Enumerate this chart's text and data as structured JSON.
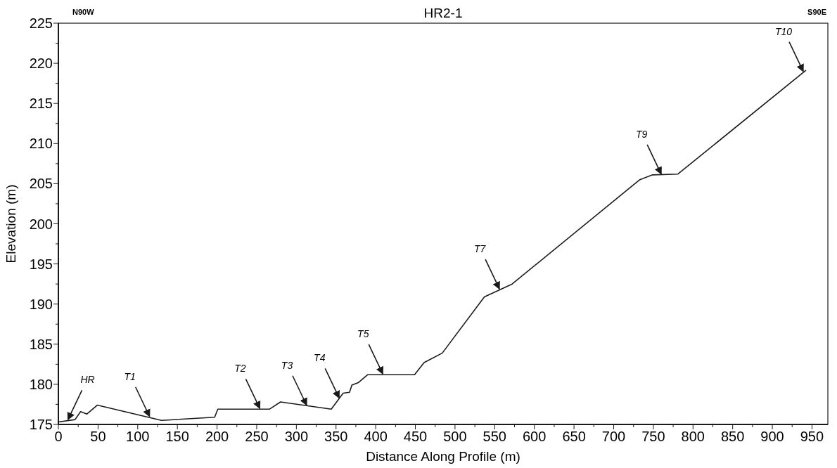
{
  "chart_data": {
    "type": "line",
    "title": "HR2-1",
    "xlabel": "Distance Along Profile (m)",
    "ylabel": "Elevation (m)",
    "x": [
      0,
      21,
      28,
      36,
      49,
      130,
      197,
      201,
      266,
      280,
      344,
      359,
      367,
      370,
      378,
      390,
      449,
      461,
      484,
      537,
      572,
      733,
      749,
      781,
      942
    ],
    "series": [
      {
        "color": "#1a1a1a",
        "values": [
          175.3,
          175.6,
          176.6,
          176.3,
          177.4,
          175.5,
          175.9,
          176.9,
          176.9,
          177.8,
          176.9,
          178.9,
          179.0,
          179.9,
          180.2,
          181.2,
          181.2,
          182.7,
          183.9,
          190.9,
          192.5,
          205.5,
          206.1,
          206.2,
          219.1
        ]
      }
    ],
    "xlim": [
      0,
      970
    ],
    "ylim": [
      175,
      225
    ],
    "xticks": [
      0,
      {
        "value": 25,
        "label": null
      },
      50,
      {
        "value": 75,
        "label": null
      },
      100,
      {
        "value": 125,
        "label": null
      },
      150,
      {
        "value": 175,
        "label": null
      },
      200,
      {
        "value": 225,
        "label": null
      },
      250,
      {
        "value": 275,
        "label": null
      },
      300,
      {
        "value": 325,
        "label": null
      },
      350,
      {
        "value": 375,
        "label": null
      },
      400,
      {
        "value": 425,
        "label": null
      },
      450,
      {
        "value": 475,
        "label": null
      },
      500,
      {
        "value": 525,
        "label": null
      },
      550,
      {
        "value": 575,
        "label": null
      },
      600,
      {
        "value": 625,
        "label": null
      },
      650,
      {
        "value": 675,
        "label": null
      },
      700,
      {
        "value": 725,
        "label": null
      },
      750,
      {
        "value": 775,
        "label": null
      },
      800,
      {
        "value": 825,
        "label": null
      },
      850,
      {
        "value": 875,
        "label": null
      },
      900,
      {
        "value": 925,
        "label": null
      },
      950
    ],
    "yticks": [
      175,
      {
        "value": 177.5,
        "label": null
      },
      180,
      {
        "value": 182.5,
        "label": null
      },
      185,
      {
        "value": 187.5,
        "label": null
      },
      190,
      {
        "value": 192.5,
        "label": null
      },
      195,
      {
        "value": 197.5,
        "label": null
      },
      200,
      {
        "value": 202.5,
        "label": null
      },
      205,
      {
        "value": 207.5,
        "label": null
      },
      210,
      {
        "value": 212.5,
        "label": null
      },
      215,
      {
        "value": 217.5,
        "label": null
      },
      220,
      {
        "value": 222.5,
        "label": null
      },
      225
    ],
    "grid": false,
    "marker": "none",
    "line_style": "solid",
    "annotations": [
      "N90W",
      "S90E",
      {
        "text": "HR",
        "x": 12,
        "y": 175.5
      },
      {
        "text": "T1",
        "x": 115,
        "y": 175.9
      },
      {
        "text": "T2",
        "x": 254,
        "y": 176.9
      },
      {
        "text": "T3",
        "x": 313,
        "y": 177.3
      },
      {
        "text": "T4",
        "x": 354,
        "y": 178.2
      },
      {
        "text": "T5",
        "x": 409,
        "y": 181.2
      },
      {
        "text": "T7",
        "x": 556,
        "y": 191.8
      },
      {
        "text": "T9",
        "x": 760,
        "y": 206.1
      },
      {
        "text": "T10",
        "x": 939,
        "y": 218.9
      }
    ]
  }
}
